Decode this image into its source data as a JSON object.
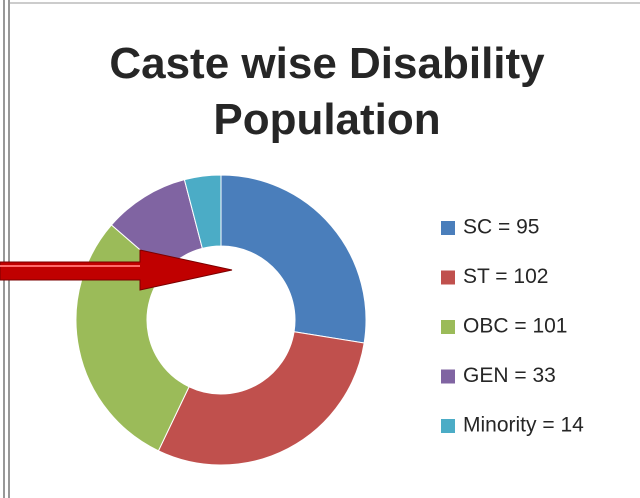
{
  "chart_data": {
    "type": "donut",
    "title": "Caste wise Disability Population",
    "categories": [
      "SC = 95",
      "ST = 102",
      "OBC = 101",
      "GEN = 33",
      "Minority = 14"
    ],
    "values": [
      95,
      102,
      101,
      33,
      14
    ],
    "colors": [
      "#4a7ebb",
      "#c0504d",
      "#9bbb59",
      "#8064a2",
      "#4bacc6"
    ],
    "legend": "right"
  }
}
